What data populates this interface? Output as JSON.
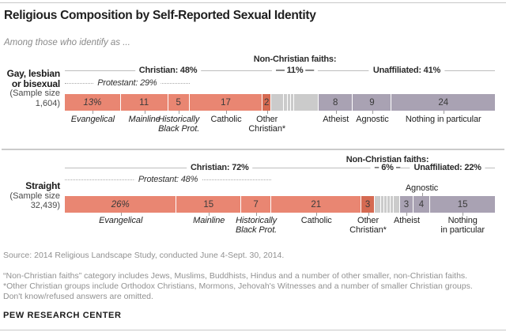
{
  "page": {
    "title": "Religious Composition by Self-Reported Sexual Identity",
    "subtitle": "Among those who identify as ..."
  },
  "colors": {
    "christian": "#e98672",
    "other_christian": "#d56a52",
    "non_christian": "#cbcbcb",
    "unaffiliated": "#a9a2b3"
  },
  "chart_data": [
    {
      "type": "stacked-bar",
      "group": {
        "name_lines": [
          "Gay, lesbian",
          "or bisexual"
        ],
        "sample_lines": [
          "(Sample size",
          "1,604)"
        ]
      },
      "annotations": {
        "non_christian_title": "Non-Christian faiths:",
        "brackets": [
          {
            "id": "christian",
            "label": "Christian: 48%",
            "start": 0,
            "span": 48,
            "style": "solid"
          },
          {
            "id": "non-christian",
            "label": "— 11% —",
            "start": 48,
            "span": 11,
            "style": "solid"
          },
          {
            "id": "unaffiliated",
            "label": "Unaffiliated: 41%",
            "start": 59,
            "span": 41,
            "style": "solid"
          },
          {
            "id": "protestant",
            "label": "Protestant: 29%",
            "start": 0,
            "span": 29,
            "style": "dotted",
            "italic": true
          }
        ]
      },
      "segments": [
        {
          "name": "Evangelical",
          "value": 13,
          "display": "13%",
          "color": "christian",
          "italic_value": true,
          "label_lines": [
            "Evangelical"
          ],
          "label_italic": true,
          "label_pos": "below"
        },
        {
          "name": "Mainline",
          "value": 11,
          "display": "11",
          "color": "christian",
          "label_lines": [
            "Mainline"
          ],
          "label_italic": true,
          "label_pos": "below"
        },
        {
          "name": "Historically Black Protestant",
          "value": 5,
          "display": "5",
          "color": "christian",
          "label_lines": [
            "Historically",
            "Black Prot."
          ],
          "label_italic": true,
          "label_pos": "below"
        },
        {
          "name": "Catholic",
          "value": 17,
          "display": "17",
          "color": "christian",
          "label_lines": [
            "Catholic"
          ],
          "label_pos": "below"
        },
        {
          "name": "Other Christian",
          "value": 2,
          "display": "2",
          "color": "other_christian",
          "label_lines": [
            "Other",
            "Christian*"
          ],
          "label_pos": "below"
        },
        {
          "name": "Non-Christian faiths",
          "value": 11,
          "display": "",
          "color": "non_christian",
          "subsegment_pattern": [
            3,
            0.8,
            0.8,
            0.8,
            5.6
          ]
        },
        {
          "name": "Atheist",
          "value": 8,
          "display": "8",
          "color": "unaffiliated",
          "label_lines": [
            "Atheist"
          ],
          "label_pos": "below"
        },
        {
          "name": "Agnostic",
          "value": 9,
          "display": "9",
          "color": "unaffiliated",
          "label_lines": [
            "Agnostic"
          ],
          "label_pos": "below"
        },
        {
          "name": "Nothing in particular",
          "value": 24,
          "display": "24",
          "color": "unaffiliated",
          "label_lines": [
            "Nothing in particular"
          ],
          "label_pos": "below"
        }
      ]
    },
    {
      "type": "stacked-bar",
      "group": {
        "name_lines": [
          "Straight"
        ],
        "sample_lines": [
          "(Sample size",
          "32,439)"
        ]
      },
      "annotations": {
        "non_christian_title": "Non-Christian faiths:",
        "brackets": [
          {
            "id": "christian",
            "label": "Christian: 72%",
            "start": 0,
            "span": 72,
            "style": "solid"
          },
          {
            "id": "non-christian",
            "label": "– 6% –",
            "start": 72,
            "span": 6,
            "style": "solid"
          },
          {
            "id": "unaffiliated",
            "label": "Unaffiliated: 22%",
            "start": 78,
            "span": 22,
            "style": "solid"
          },
          {
            "id": "protestant",
            "label": "Protestant: 48%",
            "start": 0,
            "span": 48,
            "style": "dotted",
            "italic": true
          }
        ]
      },
      "segments": [
        {
          "name": "Evangelical",
          "value": 26,
          "display": "26%",
          "color": "christian",
          "italic_value": true,
          "label_lines": [
            "Evangelical"
          ],
          "label_italic": true,
          "label_pos": "below"
        },
        {
          "name": "Mainline",
          "value": 15,
          "display": "15",
          "color": "christian",
          "label_lines": [
            "Mainline"
          ],
          "label_italic": true,
          "label_pos": "below"
        },
        {
          "name": "Historically Black Protestant",
          "value": 7,
          "display": "7",
          "color": "christian",
          "label_lines": [
            "Historically",
            "Black Prot."
          ],
          "label_italic": true,
          "label_pos": "below"
        },
        {
          "name": "Catholic",
          "value": 21,
          "display": "21",
          "color": "christian",
          "label_lines": [
            "Catholic"
          ],
          "label_pos": "below"
        },
        {
          "name": "Other Christian",
          "value": 3,
          "display": "3",
          "color": "other_christian",
          "label_lines": [
            "Other",
            "Christian*"
          ],
          "label_pos": "below"
        },
        {
          "name": "Non-Christian faiths",
          "value": 6,
          "display": "",
          "color": "non_christian",
          "subsegment_pattern": [
            1.5,
            0.75,
            0.75,
            0.75,
            0.75,
            1.5
          ]
        },
        {
          "name": "Atheist",
          "value": 3,
          "display": "3",
          "color": "unaffiliated",
          "label_lines": [
            "Atheist"
          ],
          "label_pos": "below"
        },
        {
          "name": "Agnostic",
          "value": 4,
          "display": "4",
          "color": "unaffiliated",
          "label_lines": [
            "Agnostic"
          ],
          "label_pos": "above"
        },
        {
          "name": "Nothing in particular",
          "value": 15,
          "display": "15",
          "color": "unaffiliated",
          "label_lines": [
            "Nothing",
            "in particular"
          ],
          "label_pos": "below"
        }
      ]
    }
  ],
  "footer": {
    "source": "Source: 2014 Religious Landscape Study, conducted June 4-Sept. 30, 2014.",
    "notes": [
      "“Non-Christian faiths” category includes Jews, Muslims, Buddhists, Hindus and a number of other smaller, non-Christian faiths.",
      "*Other Christian groups include Orthodox Christians, Mormons, Jehovah's Witnesses and a number of smaller Christian groups.",
      "Don't know/refused answers are omitted."
    ],
    "brand": "PEW RESEARCH CENTER"
  }
}
